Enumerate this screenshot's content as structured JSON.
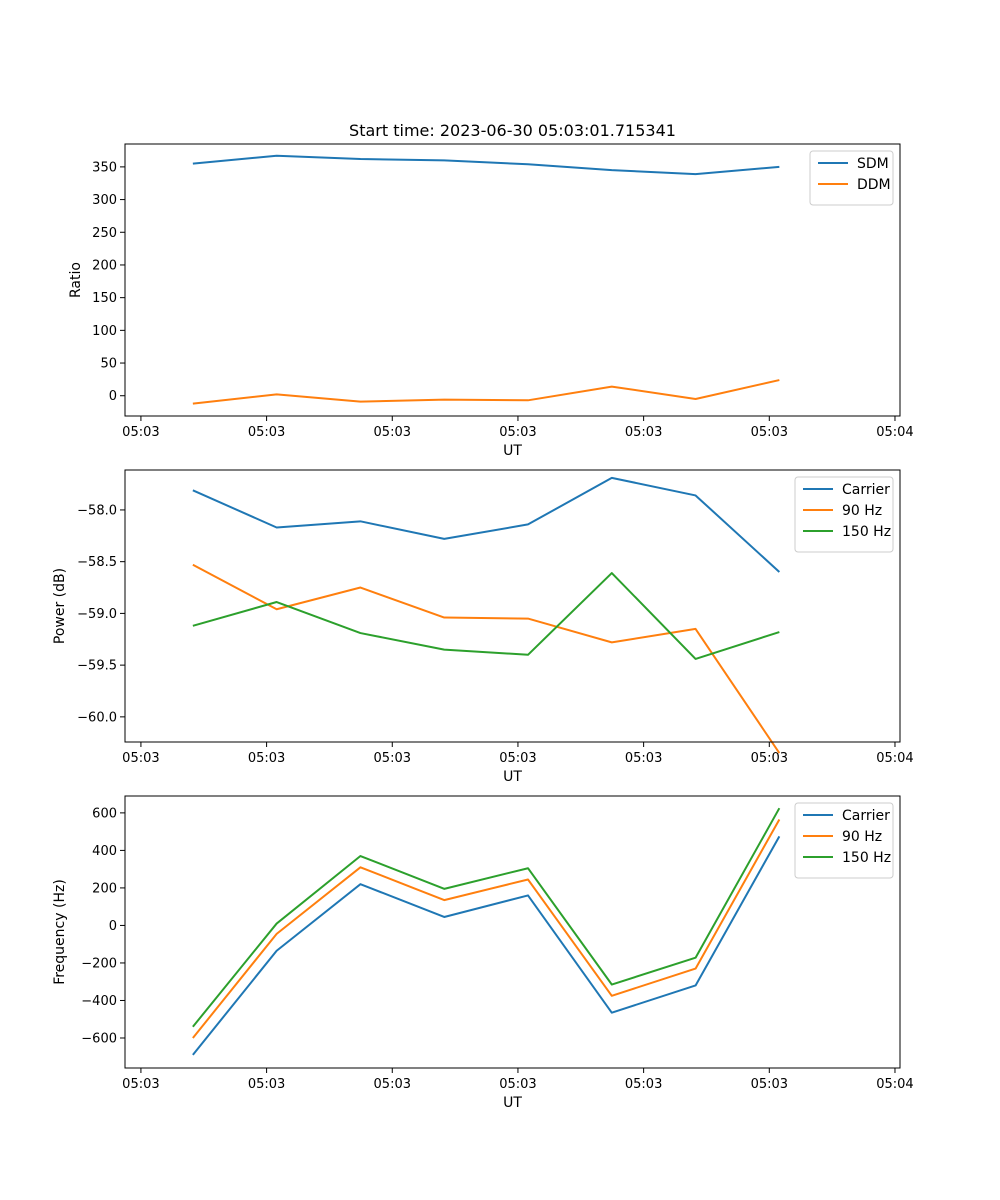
{
  "figure": {
    "title": "Start time: 2023-06-30 05:03:01.715341"
  },
  "colors": {
    "blue": "#1f77b4",
    "orange": "#ff7f0e",
    "green": "#2ca02c"
  },
  "chart_data": [
    {
      "type": "line",
      "title": "Start time: 2023-06-30 05:03:01.715341",
      "xlabel": "UT",
      "ylabel": "Ratio",
      "x": [
        1,
        2,
        3,
        4,
        5,
        6,
        7,
        8
      ],
      "xlim": [
        0.19,
        9.44
      ],
      "xticks": [
        0.38,
        1.88,
        3.38,
        4.88,
        6.38,
        7.88,
        9.38
      ],
      "xtick_labels": [
        "05:03",
        "05:03",
        "05:03",
        "05:03",
        "05:03",
        "05:03",
        "05:04"
      ],
      "ylim": [
        -31,
        385
      ],
      "yticks": [
        0,
        50,
        100,
        150,
        200,
        250,
        300,
        350
      ],
      "ytick_labels": [
        "0",
        "50",
        "100",
        "150",
        "200",
        "250",
        "300",
        "350"
      ],
      "legend": "upper right",
      "series": [
        {
          "name": "SDM",
          "color": "#1f77b4",
          "values": [
            355,
            367,
            362,
            360,
            354,
            345,
            339,
            350
          ]
        },
        {
          "name": "DDM",
          "color": "#ff7f0e",
          "values": [
            -12,
            2,
            -9,
            -6,
            -7,
            14,
            -5,
            24
          ]
        }
      ]
    },
    {
      "type": "line",
      "xlabel": "UT",
      "ylabel": "Power (dB)",
      "x": [
        1,
        2,
        3,
        4,
        5,
        6,
        7,
        8
      ],
      "xlim": [
        0.19,
        9.44
      ],
      "xticks": [
        0.38,
        1.88,
        3.38,
        4.88,
        6.38,
        7.88,
        9.38
      ],
      "xtick_labels": [
        "05:03",
        "05:03",
        "05:03",
        "05:03",
        "05:03",
        "05:03",
        "05:04"
      ],
      "ylim": [
        -60.243,
        -57.614
      ],
      "yticks": [
        -60.0,
        -59.5,
        -59.0,
        -58.5,
        -58.0
      ],
      "ytick_labels": [
        "−60.0",
        "−59.5",
        "−59.0",
        "−58.5",
        "−58.0"
      ],
      "legend": "upper right",
      "series": [
        {
          "name": "Carrier",
          "color": "#1f77b4",
          "values": [
            -57.81,
            -58.17,
            -58.11,
            -58.28,
            -58.14,
            -57.69,
            -57.86,
            -58.6
          ]
        },
        {
          "name": "90 Hz",
          "color": "#ff7f0e",
          "values": [
            -58.53,
            -58.96,
            -58.75,
            -59.04,
            -59.05,
            -59.28,
            -59.15,
            -60.35
          ]
        },
        {
          "name": "150 Hz",
          "color": "#2ca02c",
          "values": [
            -59.12,
            -58.89,
            -59.19,
            -59.35,
            -59.4,
            -58.61,
            -59.44,
            -59.18
          ]
        }
      ]
    },
    {
      "type": "line",
      "xlabel": "UT",
      "ylabel": "Frequency (Hz)",
      "x": [
        1,
        2,
        3,
        4,
        5,
        6,
        7,
        8
      ],
      "xlim": [
        0.19,
        9.44
      ],
      "xticks": [
        0.38,
        1.88,
        3.38,
        4.88,
        6.38,
        7.88,
        9.38
      ],
      "xtick_labels": [
        "05:03",
        "05:03",
        "05:03",
        "05:03",
        "05:03",
        "05:03",
        "05:04"
      ],
      "ylim": [
        -760,
        690
      ],
      "yticks": [
        -600,
        -400,
        -200,
        0,
        200,
        400,
        600
      ],
      "ytick_labels": [
        "−600",
        "−400",
        "−200",
        "0",
        "200",
        "400",
        "600"
      ],
      "legend": "upper right",
      "series": [
        {
          "name": "Carrier",
          "color": "#1f77b4",
          "values": [
            -690,
            -135,
            220,
            45,
            160,
            -465,
            -320,
            475
          ]
        },
        {
          "name": "90 Hz",
          "color": "#ff7f0e",
          "values": [
            -600,
            -45,
            310,
            135,
            245,
            -375,
            -230,
            565
          ]
        },
        {
          "name": "150 Hz",
          "color": "#2ca02c",
          "values": [
            -540,
            10,
            370,
            195,
            305,
            -315,
            -172,
            625
          ]
        }
      ]
    }
  ]
}
